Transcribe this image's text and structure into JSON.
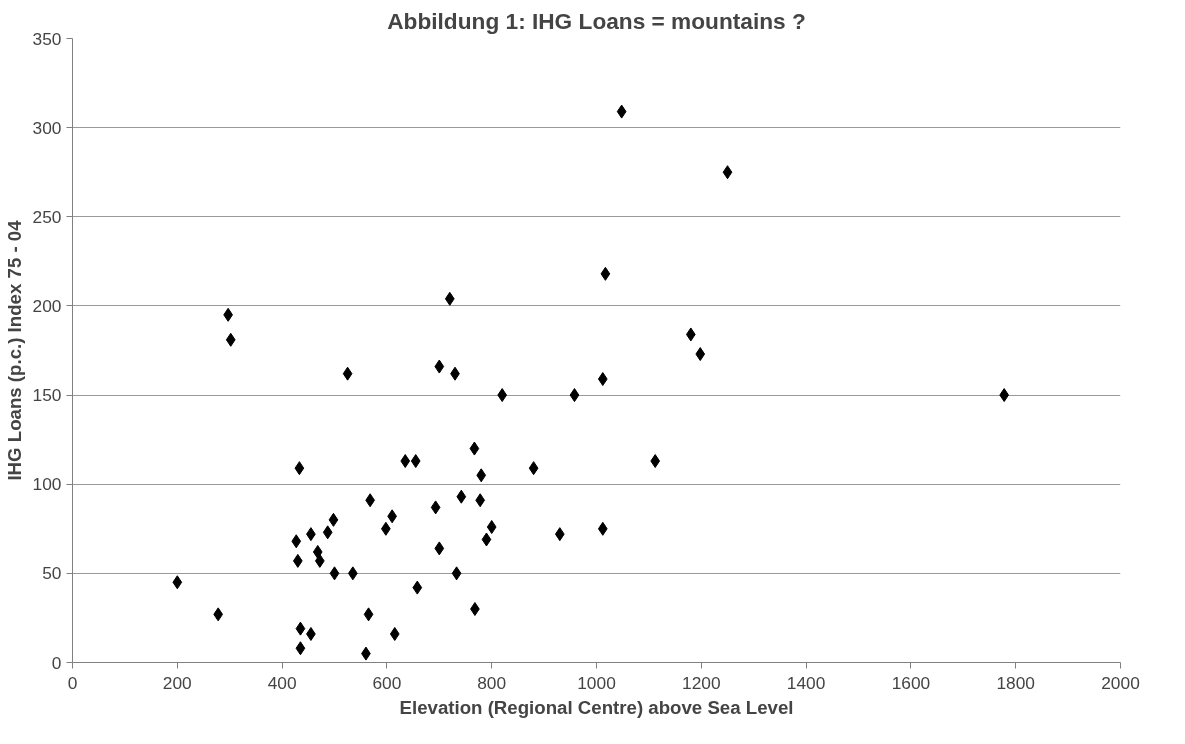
{
  "chart_data": {
    "type": "scatter",
    "title": "Abbildung 1: IHG Loans = mountains ?",
    "xlabel": "Elevation (Regional Centre) above Sea Level",
    "ylabel": "IHG Loans (p.c.) Index 75 - 04",
    "x": [
      200,
      278,
      297,
      302,
      427,
      430,
      433,
      435,
      435,
      455,
      455,
      468,
      472,
      487,
      498,
      500,
      525,
      535,
      560,
      565,
      568,
      598,
      610,
      615,
      635,
      655,
      658,
      693,
      700,
      700,
      720,
      730,
      733,
      742,
      767,
      768,
      778,
      780,
      790,
      800,
      820,
      880,
      930,
      958,
      1012,
      1012,
      1017,
      1048,
      1112,
      1180,
      1198,
      1250,
      1778
    ],
    "values": [
      45,
      27,
      195,
      181,
      68,
      57,
      109,
      19,
      8,
      16,
      72,
      62,
      57,
      73,
      80,
      50,
      162,
      50,
      5,
      27,
      91,
      75,
      82,
      16,
      113,
      113,
      42,
      87,
      166,
      64,
      204,
      162,
      50,
      93,
      120,
      30,
      91,
      105,
      69,
      76,
      150,
      109,
      72,
      150,
      159,
      75,
      218,
      309,
      113,
      184,
      173,
      275,
      150
    ],
    "color": "#000000",
    "marker": "diamond",
    "xlim": [
      0,
      2000
    ],
    "ylim": [
      0,
      350
    ],
    "xticks": [
      0,
      200,
      400,
      600,
      800,
      1000,
      1200,
      1400,
      1600,
      1800,
      2000
    ],
    "yticks": [
      0,
      50,
      100,
      150,
      200,
      250,
      300,
      350
    ],
    "grid": "y"
  }
}
